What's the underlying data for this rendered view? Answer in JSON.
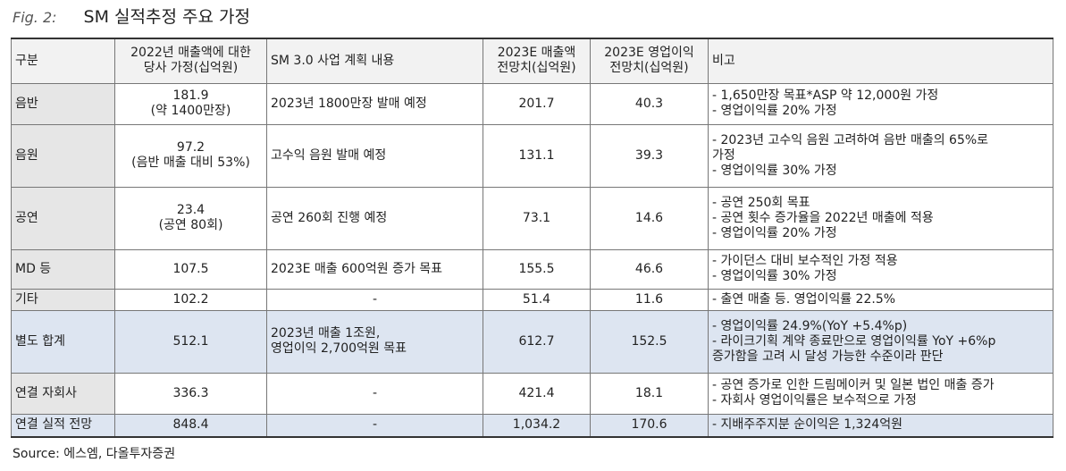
{
  "figure_label": "Fig. 2:",
  "title": "SM 실적추정 주요 가정",
  "table": {
    "header": [
      [
        "구분"
      ],
      [
        "2022년 매출액에 대한",
        "당사 가정(십억원)"
      ],
      [
        "SM 3.0 사업 계획 내용"
      ],
      [
        "2023E 매출액",
        "전망치(십억원)"
      ],
      [
        "2023E 영업이익",
        "전망치(십억원)"
      ],
      [
        "비고"
      ]
    ],
    "rows": [
      [
        [
          "음반"
        ],
        [
          "181.9",
          "(약 1400만장)"
        ],
        [
          "2023년 1800만장 발매 예정"
        ],
        [
          "201.7"
        ],
        [
          "40.3"
        ],
        [
          "- 1,650만장 목표*ASP 약 12,000원 가정",
          "- 영업이익률 20% 가정"
        ]
      ],
      [
        [
          "음원"
        ],
        [
          "97.2",
          "(음반 매출 대비 53%)"
        ],
        [
          "고수익 음원 발매 예정"
        ],
        [
          "131.1"
        ],
        [
          "39.3"
        ],
        [
          "- 2023년 고수익 음원 고려하여 음반 매출의 65%로",
          "가정",
          "- 영업이익률 30% 가정"
        ]
      ],
      [
        [
          "공연"
        ],
        [
          "23.4",
          "(공연 80회)"
        ],
        [
          "공연 260회 진행 예정"
        ],
        [
          "73.1"
        ],
        [
          "14.6"
        ],
        [
          "- 공연 250회 목표",
          "- 공연 횟수 증가율을 2022년 매출에 적용",
          "- 영업이익률 20% 가정"
        ]
      ],
      [
        [
          "MD 등"
        ],
        [
          "107.5"
        ],
        [
          "2023E 매출 600억원 증가 목표"
        ],
        [
          "155.5"
        ],
        [
          "46.6"
        ],
        [
          "- 가이던스 대비 보수적인 가정 적용",
          "- 영업이익률 30% 가정"
        ]
      ],
      [
        [
          "기타"
        ],
        [
          "102.2"
        ],
        [
          "-"
        ],
        [
          "51.4"
        ],
        [
          "11.6"
        ],
        [
          "- 출연 매출 등. 영업이익률 22.5%"
        ]
      ],
      [
        [
          "별도 합계"
        ],
        [
          "512.1"
        ],
        [
          "2023년 매출 1조원,",
          "영업이익 2,700억원 목표"
        ],
        [
          "612.7"
        ],
        [
          "152.5"
        ],
        [
          "- 영업이익률 24.9%(YoY +5.4%p)",
          "- 라이크기획 계약 종료만으로 영업이익률 YoY +6%p",
          "증가함을 고려 시 달성 가능한 수준이라 판단"
        ]
      ],
      [
        [
          "연결 자회사"
        ],
        [
          "336.3"
        ],
        [
          "-"
        ],
        [
          "421.4"
        ],
        [
          "18.1"
        ],
        [
          "- 공연 증가로 인한 드림메이커 및 일본 법인 매출 증가",
          "- 자회사 영업이익률은 보수적으로 가정"
        ]
      ],
      [
        [
          "연결 실적 전망"
        ],
        [
          "848.4"
        ],
        [
          "-"
        ],
        [
          "1,034.2"
        ],
        [
          "170.6"
        ],
        [
          "- 지배주주지분 순이익은 1,324억원"
        ]
      ]
    ]
  },
  "source": "Source: 에스엠, 다올투자증권"
}
